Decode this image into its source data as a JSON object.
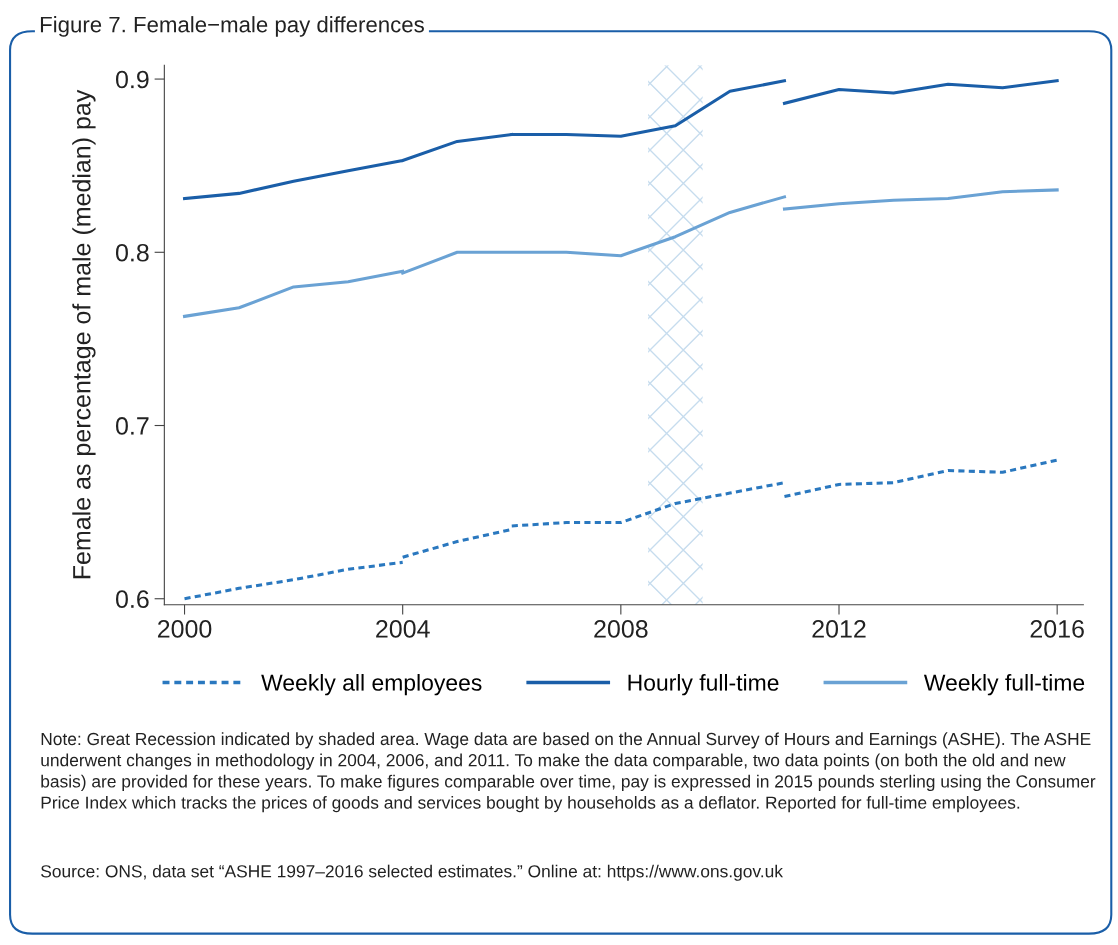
{
  "chart_data": {
    "type": "line",
    "title": "Figure 7. Female−male pay differences",
    "ylabel": "Female as percentage of male (median) pay",
    "series": [
      {
        "name": "Weekly all employees",
        "color": "#2a78bf",
        "line_style": "dashed",
        "x": [
          2000,
          2001,
          2002,
          2003,
          2004,
          2004,
          2005,
          2006,
          2006,
          2007,
          2008,
          2009,
          2010,
          2011,
          2011,
          2012,
          2013,
          2014,
          2015,
          2016
        ],
        "values": [
          0.6,
          0.606,
          0.611,
          0.617,
          0.621,
          0.624,
          0.633,
          0.64,
          0.642,
          0.644,
          0.644,
          0.655,
          0.661,
          0.667,
          0.659,
          0.666,
          0.667,
          0.674,
          0.673,
          0.68
        ]
      },
      {
        "name": "Hourly full-time",
        "color": "#1a5ea8",
        "line_style": "solid",
        "x": [
          2000,
          2001,
          2002,
          2003,
          2004,
          2004,
          2005,
          2006,
          2006,
          2007,
          2008,
          2009,
          2010,
          2011,
          2011,
          2012,
          2013,
          2014,
          2015,
          2016
        ],
        "values": [
          0.831,
          0.834,
          0.841,
          0.847,
          0.853,
          0.853,
          0.864,
          0.868,
          0.868,
          0.868,
          0.867,
          0.873,
          0.893,
          0.899,
          0.886,
          0.894,
          0.892,
          0.897,
          0.895,
          0.899
        ]
      },
      {
        "name": "Weekly full-time",
        "color": "#6aa2d4",
        "line_style": "solid",
        "x": [
          2000,
          2001,
          2002,
          2003,
          2004,
          2004,
          2005,
          2006,
          2006,
          2007,
          2008,
          2009,
          2010,
          2011,
          2011,
          2012,
          2013,
          2014,
          2015,
          2016
        ],
        "values": [
          0.763,
          0.768,
          0.78,
          0.783,
          0.789,
          0.788,
          0.8,
          0.8,
          0.8,
          0.8,
          0.798,
          0.809,
          0.823,
          0.832,
          0.825,
          0.828,
          0.83,
          0.831,
          0.835,
          0.836
        ]
      }
    ],
    "xlim": [
      1999.63,
      2016.48
    ],
    "xticks": [
      2000,
      2004,
      2008,
      2012,
      2016
    ],
    "ylim": [
      0.5965,
      0.908
    ],
    "yticks": [
      0.6,
      0.7,
      0.8,
      0.9
    ],
    "bands": [
      {
        "axis": "x",
        "from": 2008.5,
        "to": 2009.5,
        "color": "#c6dcee"
      }
    ],
    "grid": false,
    "legend": "bottom",
    "marker": "none",
    "annotations": [
      "Note: Great Recession indicated by shaded area. Wage data are based on the Annual Survey of Hours and Earnings (ASHE). The ASHE underwent changes in methodology in 2004, 2006, and 2011. To make the data comparable, two data points (on both the old and new basis) are provided for these years. To make figures comparable over time, pay is expressed in 2015 pounds sterling using the Consumer Price Index which tracks the prices of goods and services bought by households as a deflator. Reported for full-time employees.",
      "Source: ONS, data set “ASHE 1997–2016 selected estimates.” Online at: https://www.ons.gov.uk"
    ]
  }
}
